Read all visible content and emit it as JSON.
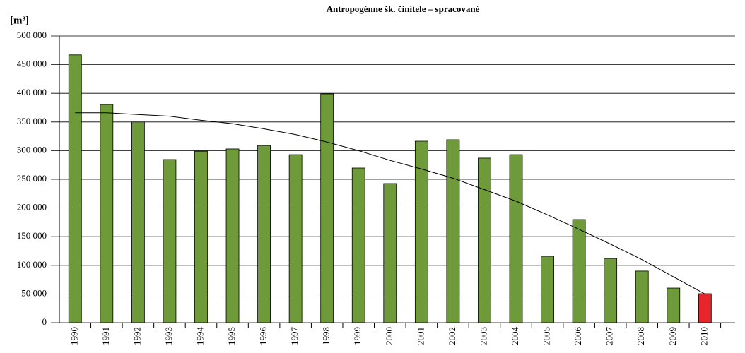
{
  "chart_data": {
    "type": "bar",
    "title": "Antropogénne šk. činitele – spracované",
    "y_label": "[m³]",
    "categories": [
      "1990",
      "1991",
      "1992",
      "1993",
      "1994",
      "1995",
      "1996",
      "1997",
      "1998",
      "1999",
      "2000",
      "2001",
      "2002",
      "2003",
      "2004",
      "2005",
      "2006",
      "2007",
      "2008",
      "2009",
      "2010"
    ],
    "values": [
      467000,
      380500,
      350000,
      284500,
      299000,
      303000,
      309000,
      293000,
      399000,
      269700,
      242600,
      316500,
      319000,
      287000,
      293000,
      115800,
      179800,
      112000,
      90000,
      60300,
      50500
    ],
    "colors": [
      "#6f9a3a",
      "#6f9a3a",
      "#6f9a3a",
      "#6f9a3a",
      "#6f9a3a",
      "#6f9a3a",
      "#6f9a3a",
      "#6f9a3a",
      "#6f9a3a",
      "#6f9a3a",
      "#6f9a3a",
      "#6f9a3a",
      "#6f9a3a",
      "#6f9a3a",
      "#6f9a3a",
      "#6f9a3a",
      "#6f9a3a",
      "#6f9a3a",
      "#6f9a3a",
      "#6f9a3a",
      "#e8262a"
    ],
    "trend": {
      "color": "#000000",
      "values": [
        366000,
        366000,
        363000,
        360000,
        353000,
        347000,
        338000,
        328000,
        315000,
        300000,
        283000,
        268000,
        252000,
        232000,
        212000,
        188000,
        163000,
        137000,
        110000,
        80000,
        50000
      ]
    },
    "ylim": [
      0,
      500000
    ],
    "yticks": [
      0,
      {
        "value": 50000,
        "label": "50 000"
      },
      {
        "value": 100000,
        "label": "100 000"
      },
      {
        "value": 150000,
        "label": "150 000"
      },
      {
        "value": 200000,
        "label": "200 000"
      },
      {
        "value": 250000,
        "label": "250 000"
      },
      {
        "value": 300000,
        "label": "300 000"
      },
      {
        "value": 350000,
        "label": "350 000"
      },
      {
        "value": 400000,
        "label": "400 000"
      },
      {
        "value": 450000,
        "label": "450 000"
      },
      {
        "value": 500000,
        "label": "500 000"
      }
    ],
    "grid": true
  }
}
